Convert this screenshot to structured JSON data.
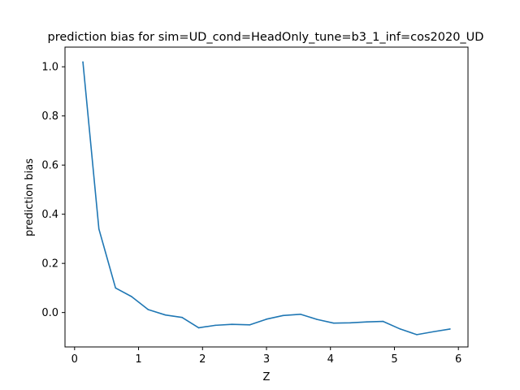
{
  "chart_data": {
    "type": "line",
    "title": "prediction bias for sim=UD_cond=HeadOnly_tune=b3_1_inf=cos2020_UD",
    "xlabel": "Z",
    "ylabel": "prediction bias",
    "xlim": [
      -0.15,
      6.15
    ],
    "ylim": [
      -0.14,
      1.08
    ],
    "x_ticks": [
      0,
      1,
      2,
      3,
      4,
      5,
      6
    ],
    "y_ticks": [
      0.0,
      0.2,
      0.4,
      0.6,
      0.8,
      1.0
    ],
    "x_tick_labels": [
      "0",
      "1",
      "2",
      "3",
      "4",
      "5",
      "6"
    ],
    "y_tick_labels": [
      "0.0",
      "0.2",
      "0.4",
      "0.6",
      "0.8",
      "1.0"
    ],
    "grid": false,
    "series": [
      {
        "color": "#1f77b4",
        "x": [
          0.13,
          0.38,
          0.64,
          0.89,
          1.15,
          1.42,
          1.68,
          1.94,
          2.2,
          2.46,
          2.74,
          3.0,
          3.26,
          3.53,
          3.79,
          4.05,
          4.31,
          4.57,
          4.82,
          5.09,
          5.35,
          5.61,
          5.87
        ],
        "y": [
          1.02,
          0.34,
          0.1,
          0.065,
          0.012,
          -0.01,
          -0.02,
          -0.062,
          -0.052,
          -0.048,
          -0.05,
          -0.027,
          -0.012,
          -0.007,
          -0.028,
          -0.043,
          -0.042,
          -0.038,
          -0.036,
          -0.067,
          -0.09,
          -0.078,
          -0.067
        ]
      }
    ]
  }
}
